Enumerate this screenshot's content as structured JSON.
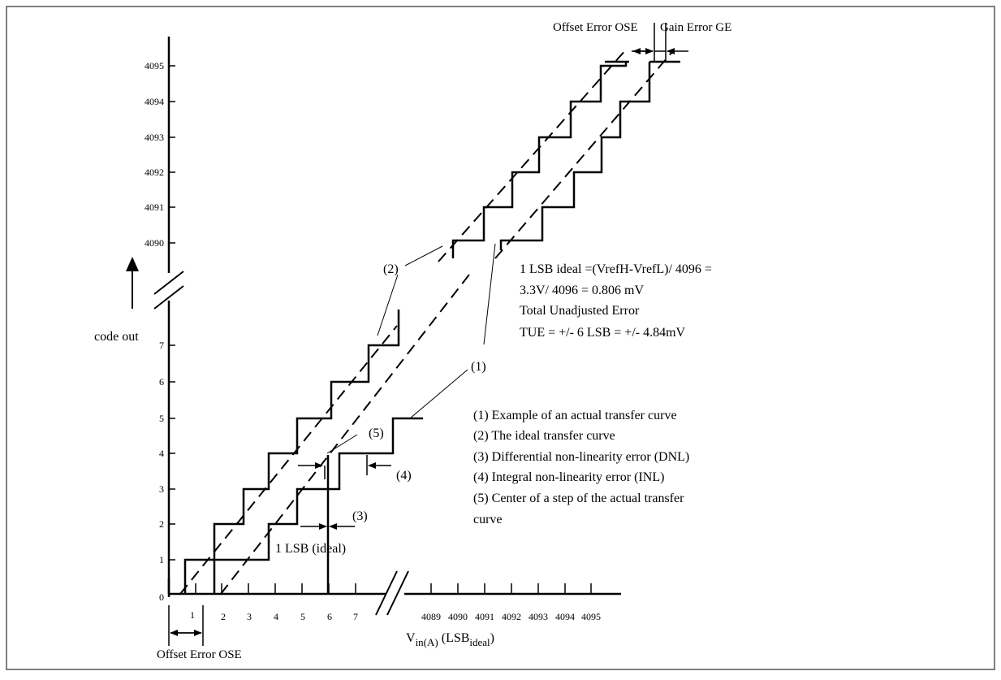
{
  "axis": {
    "y_label": "code out",
    "x_label_main": "V",
    "x_label_sub": "in(A)",
    "x_label_unit_open": " (LSB",
    "x_label_unit_sub": "ideal",
    "x_label_unit_close": ")",
    "origin": "0",
    "y_low_ticks": [
      "1",
      "2",
      "3",
      "4",
      "5",
      "6",
      "7"
    ],
    "y_high_ticks": [
      "4090",
      "4091",
      "4092",
      "4093",
      "4094",
      "4095"
    ],
    "x_low_ticks": [
      "1",
      "2",
      "3",
      "4",
      "5",
      "6",
      "7"
    ],
    "x_high_ticks": [
      "4089",
      "4090",
      "4091",
      "4092",
      "4093",
      "4094",
      "4095"
    ]
  },
  "annotations": {
    "offset_error_bottom": "Offset Error OSE",
    "offset_error_top": "Offset Error OSE",
    "gain_error_top": "Gain Error GE",
    "one_lsb": "1 LSB (ideal)",
    "callout_1_top": "(1)",
    "callout_1": "(1)",
    "callout_2": "(2)",
    "callout_3": "(3)",
    "callout_4": "(4)",
    "callout_5": "(5)"
  },
  "notes": [
    "1 LSB ideal =(VrefH-VrefL)/ 4096 =",
    "3.3V/ 4096 = 0.806 mV",
    "Total Unadjusted Error",
    "TUE = +/- 6 LSB = +/- 4.84mV"
  ],
  "legend": [
    "(1) Example of an actual transfer curve",
    "(2) The ideal transfer curve",
    "(3) Differential non-linearity error (DNL)",
    "(4) Integral non-linearity error (INL)",
    "(5) Center of a step of the actual transfer",
    "curve"
  ]
}
